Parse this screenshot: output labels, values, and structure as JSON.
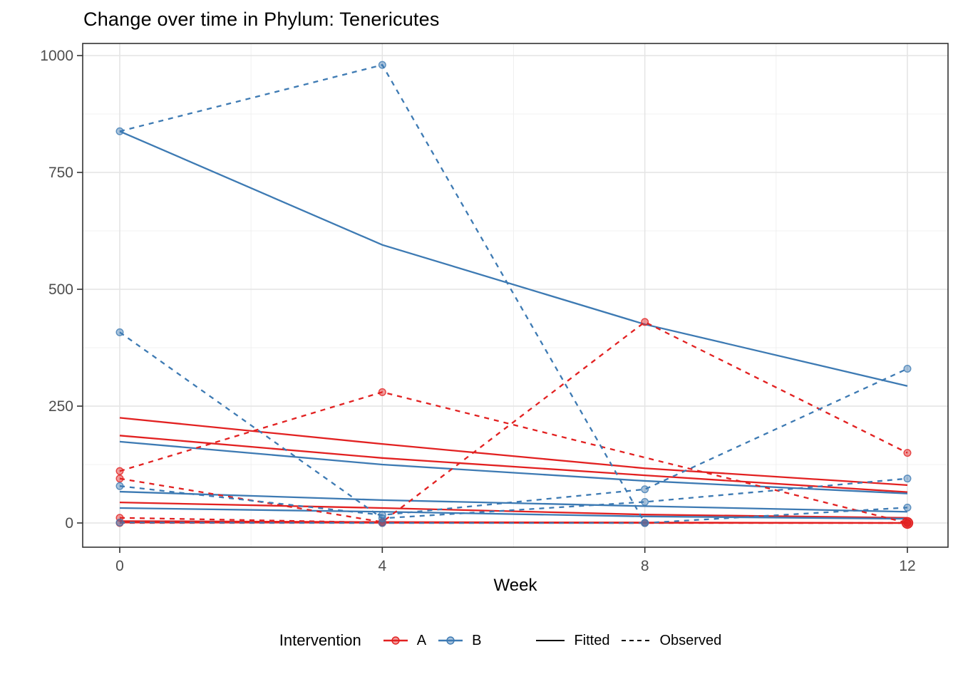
{
  "title": "Change over time in Phylum: Tenericutes",
  "x_axis": {
    "label": "Week",
    "ticks": [
      0,
      4,
      8,
      12
    ],
    "minor_ticks": [
      2,
      6,
      10
    ],
    "range": [
      0,
      12
    ]
  },
  "y_axis": {
    "ticks": [
      0,
      250,
      500,
      750,
      1000
    ],
    "minor_ticks": [
      125,
      375,
      625,
      875
    ],
    "range": [
      0,
      1000
    ]
  },
  "legend": {
    "title": "Intervention",
    "group_a_label": "A",
    "group_b_label": "B",
    "fitted_label": "Fitted",
    "observed_label": "Observed"
  },
  "colors": {
    "group_a": "#E22121",
    "group_b": "#3D7AB3",
    "grid_major": "#E4E4E4",
    "grid_minor": "#F0F0F0",
    "panel_border": "#333333",
    "tick_text": "#4D4D4D"
  },
  "chart_data": {
    "type": "line",
    "title": "Change over time in Phylum: Tenericutes",
    "xlabel": "Week",
    "ylabel": "",
    "x": [
      0,
      4,
      8,
      12
    ],
    "xlim": [
      0,
      12
    ],
    "ylim": [
      0,
      1000
    ],
    "grid": true,
    "legend_position": "bottom",
    "series": [
      {
        "name": "A-fitted-1",
        "group": "A",
        "kind": "fitted",
        "weeks": [
          0,
          4,
          8,
          12
        ],
        "values": [
          225,
          169,
          117,
          81
        ]
      },
      {
        "name": "A-fitted-2",
        "group": "A",
        "kind": "fitted",
        "weeks": [
          0,
          4,
          8,
          12
        ],
        "values": [
          187,
          139,
          102,
          66
        ]
      },
      {
        "name": "A-fitted-3",
        "group": "A",
        "kind": "fitted",
        "weeks": [
          0,
          4,
          8,
          12
        ],
        "values": [
          44,
          32,
          18,
          11
        ]
      },
      {
        "name": "A-fitted-4",
        "group": "A",
        "kind": "fitted",
        "weeks": [
          0,
          4,
          8,
          12
        ],
        "values": [
          4,
          2,
          1,
          0
        ]
      },
      {
        "name": "A-fitted-5",
        "group": "A",
        "kind": "fitted",
        "weeks": [
          0,
          4,
          8,
          12
        ],
        "values": [
          1,
          0.5,
          0.2,
          0
        ]
      },
      {
        "name": "B-fitted-1",
        "group": "B",
        "kind": "fitted",
        "weeks": [
          0,
          4,
          8,
          12
        ],
        "values": [
          838,
          595,
          425,
          293
        ]
      },
      {
        "name": "B-fitted-2",
        "group": "B",
        "kind": "fitted",
        "weeks": [
          0,
          4,
          8,
          12
        ],
        "values": [
          174,
          125,
          90,
          63
        ]
      },
      {
        "name": "B-fitted-3",
        "group": "B",
        "kind": "fitted",
        "weeks": [
          0,
          4,
          8,
          12
        ],
        "values": [
          67,
          49,
          36,
          24
        ]
      },
      {
        "name": "B-fitted-4",
        "group": "B",
        "kind": "fitted",
        "weeks": [
          0,
          4,
          8,
          12
        ],
        "values": [
          32,
          24,
          14,
          9
        ]
      },
      {
        "name": "A-observed-1",
        "group": "A",
        "kind": "observed",
        "weeks": [
          0,
          4,
          12
        ],
        "values": [
          111,
          280,
          0
        ]
      },
      {
        "name": "A-observed-2",
        "group": "A",
        "kind": "observed",
        "weeks": [
          0,
          4,
          8,
          12
        ],
        "values": [
          95,
          2,
          430,
          150
        ]
      },
      {
        "name": "A-observed-3",
        "group": "A",
        "kind": "observed",
        "weeks": [
          0,
          4,
          8,
          12
        ],
        "values": [
          11,
          1,
          0,
          0
        ]
      },
      {
        "name": "A-observed-4",
        "group": "A",
        "kind": "observed",
        "weeks": [
          0,
          4,
          8,
          12
        ],
        "values": [
          0,
          0,
          0,
          0
        ]
      },
      {
        "name": "B-observed-1",
        "group": "B",
        "kind": "observed",
        "weeks": [
          0,
          4,
          8,
          12
        ],
        "values": [
          838,
          980,
          0,
          33
        ]
      },
      {
        "name": "B-observed-2",
        "group": "B",
        "kind": "observed",
        "weeks": [
          0,
          4,
          8,
          12
        ],
        "values": [
          408,
          10,
          45,
          95
        ]
      },
      {
        "name": "B-observed-3",
        "group": "B",
        "kind": "observed",
        "weeks": [
          0,
          4,
          8,
          12
        ],
        "values": [
          79,
          17,
          72,
          330
        ]
      },
      {
        "name": "B-observed-4",
        "group": "B",
        "kind": "observed",
        "weeks": [
          0,
          4,
          8
        ],
        "values": [
          1,
          0,
          0
        ]
      }
    ],
    "overlap_markers": [
      {
        "week": 12,
        "value": 0,
        "group": "A",
        "radius": 7.5
      }
    ]
  }
}
